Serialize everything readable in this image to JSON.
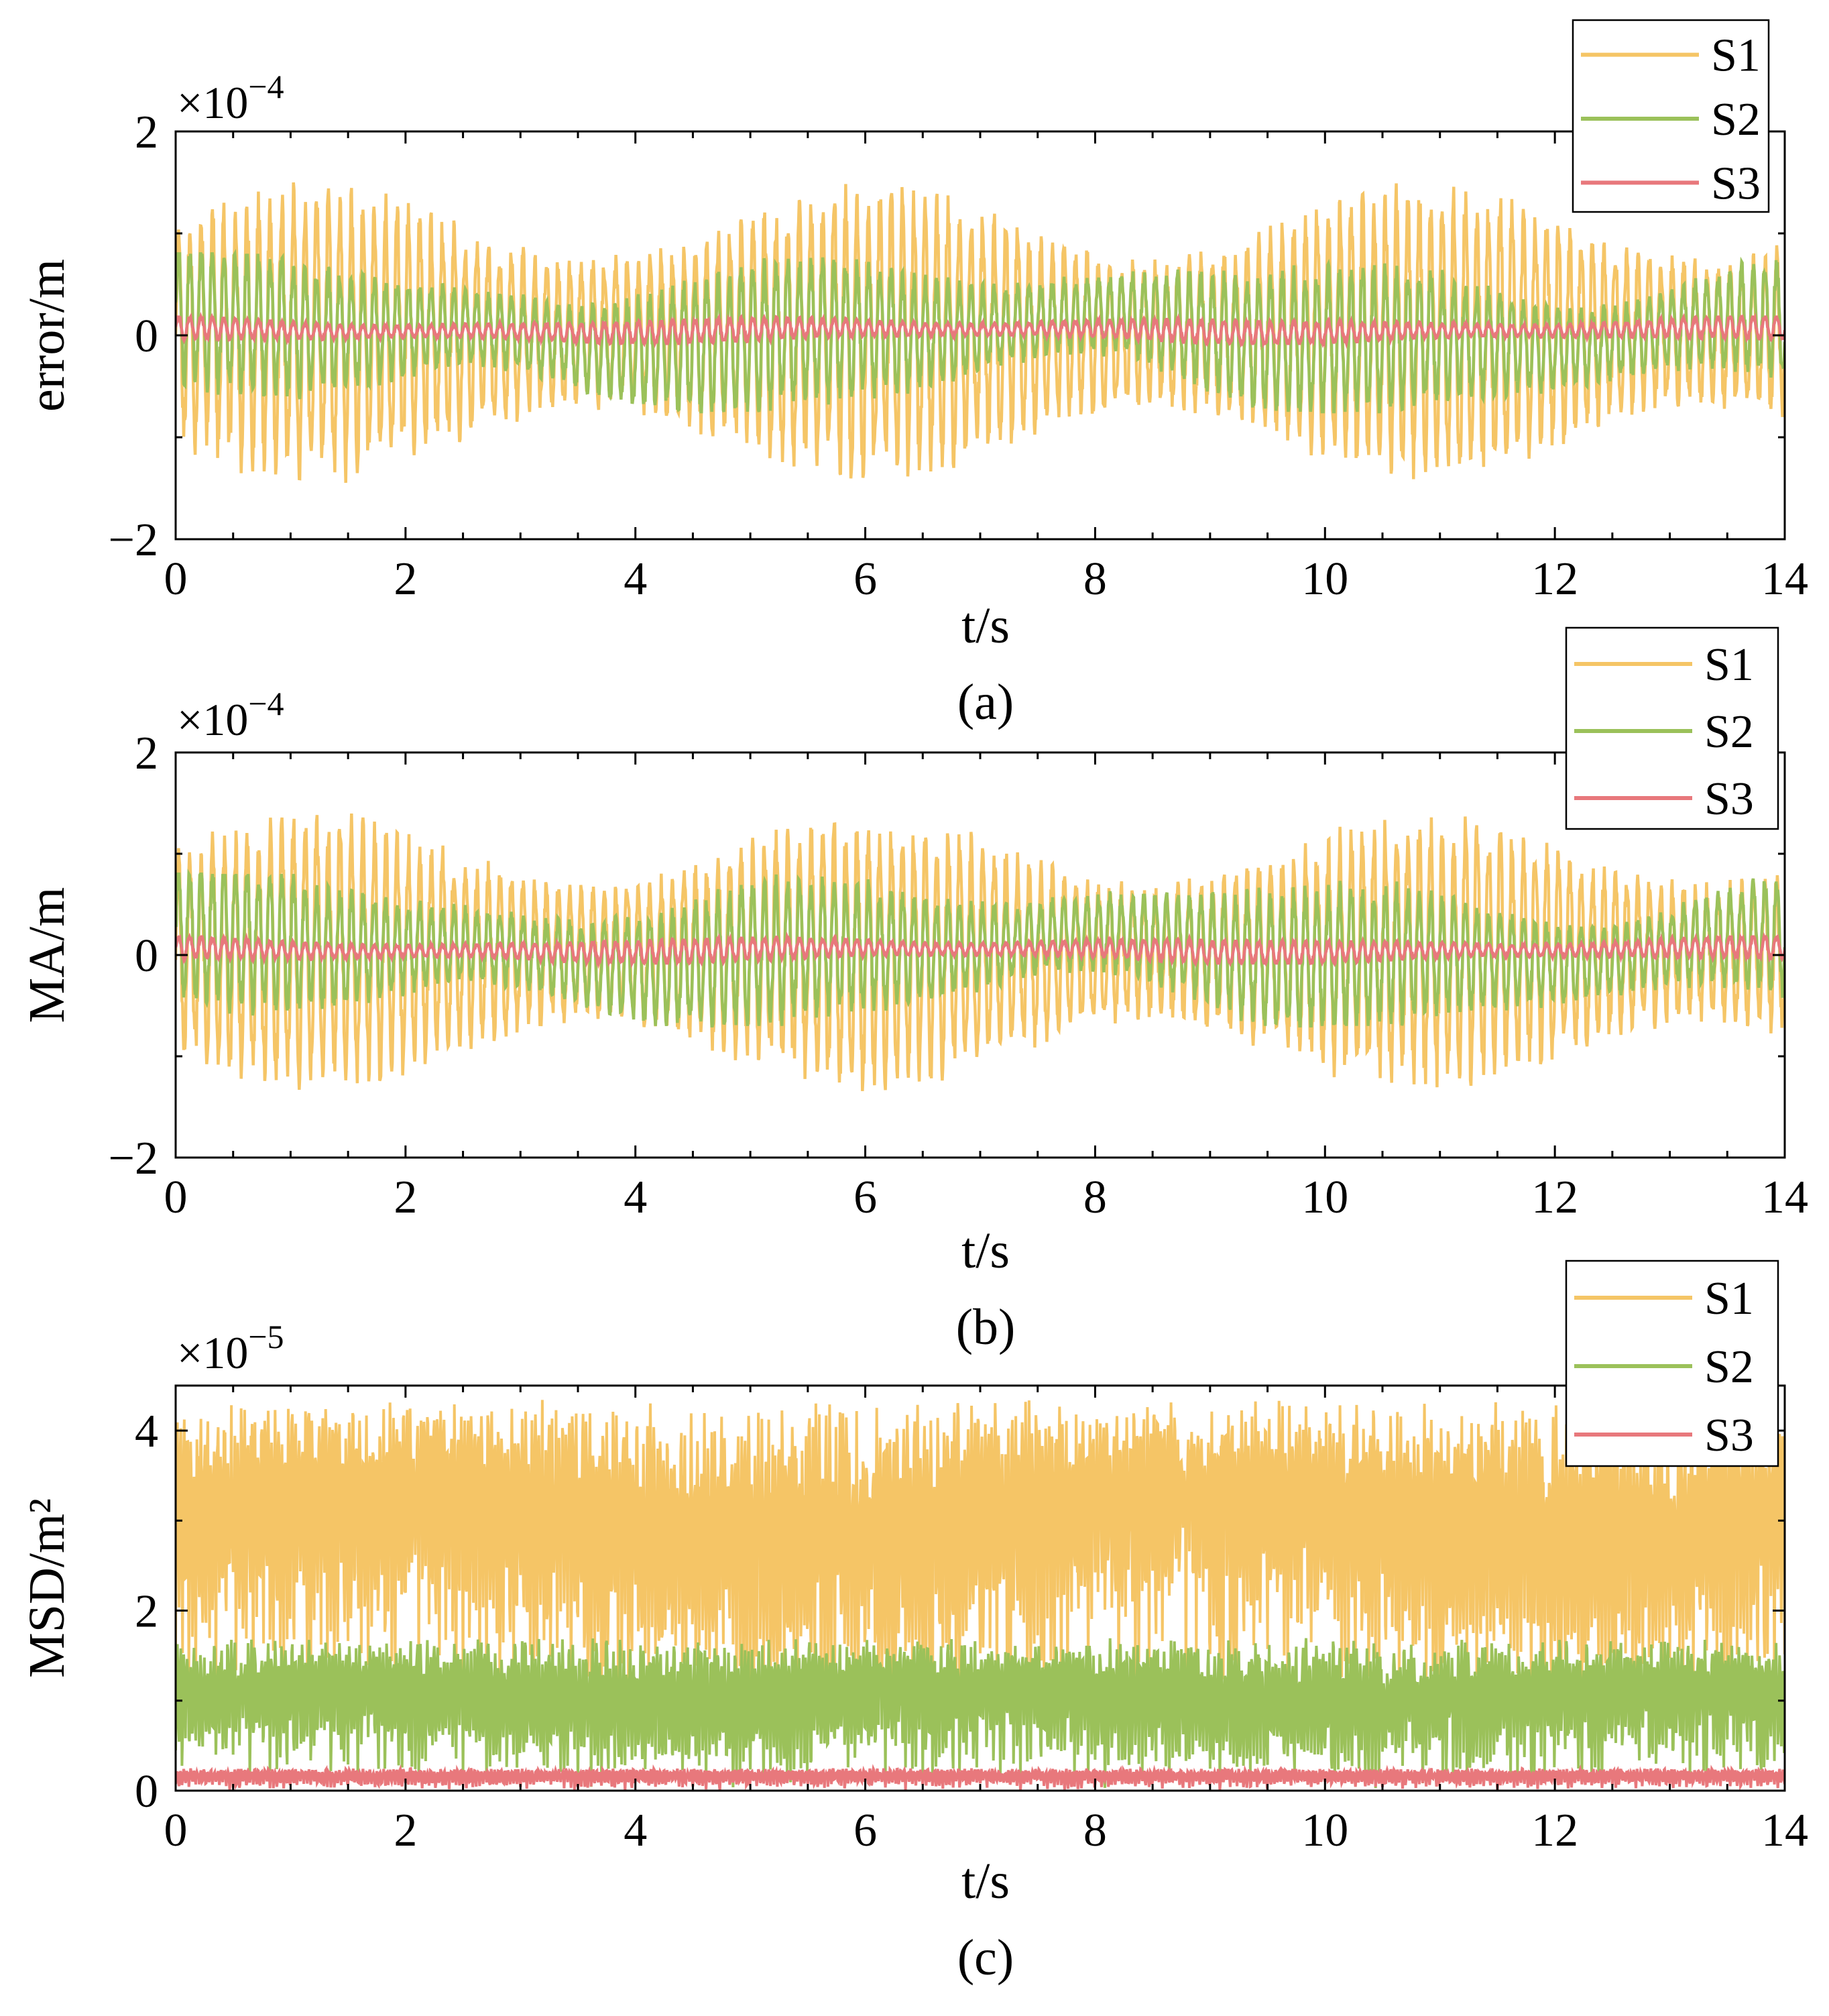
{
  "colors": {
    "S1": "#f5c566",
    "S2": "#9bc15a",
    "S3": "#e8787c"
  },
  "chart_data": [
    {
      "type": "line",
      "panel_label": "(a)",
      "ylabel": "error/m",
      "xlabel": "t/s",
      "exponent": "×10",
      "exponent_power": "−4",
      "xlim": [
        0,
        14
      ],
      "ylim": [
        -2,
        2
      ],
      "x_ticks": [
        0,
        2,
        4,
        6,
        8,
        10,
        12,
        14
      ],
      "x_tick_labels": [
        "0",
        "2",
        "4",
        "6",
        "8",
        "10",
        "12",
        "14"
      ],
      "y_ticks": [
        -2,
        0,
        2
      ],
      "y_tick_labels": [
        "−2",
        "0",
        "2"
      ],
      "legend": [
        "S1",
        "S2",
        "S3"
      ],
      "series": [
        {
          "name": "S1",
          "amplitude": 1.2,
          "offset": 0,
          "oscillation_period": 0.1,
          "range": [
            -1.45,
            1.5
          ]
        },
        {
          "name": "S2",
          "amplitude": 0.45,
          "offset": 0,
          "oscillation_period": 0.1,
          "range": [
            -0.75,
            0.8
          ]
        },
        {
          "name": "S3",
          "amplitude": 0.08,
          "offset": 0.05,
          "oscillation_period": 0.1,
          "range": [
            -0.08,
            0.18
          ]
        }
      ]
    },
    {
      "type": "line",
      "panel_label": "(b)",
      "ylabel": "MA/m",
      "xlabel": "t/s",
      "exponent": "×10",
      "exponent_power": "−4",
      "xlim": [
        0,
        14
      ],
      "ylim": [
        -2,
        2
      ],
      "x_ticks": [
        0,
        2,
        4,
        6,
        8,
        10,
        12,
        14
      ],
      "x_tick_labels": [
        "0",
        "2",
        "4",
        "6",
        "8",
        "10",
        "12",
        "14"
      ],
      "y_ticks": [
        -2,
        0,
        2
      ],
      "y_tick_labels": [
        "−2",
        "0",
        "2"
      ],
      "legend": [
        "S1",
        "S2",
        "S3"
      ],
      "series": [
        {
          "name": "S1",
          "amplitude": 1.15,
          "offset": 0,
          "oscillation_period": 0.1,
          "range": [
            -1.35,
            1.4
          ]
        },
        {
          "name": "S2",
          "amplitude": 0.45,
          "offset": 0,
          "oscillation_period": 0.1,
          "range": [
            -0.7,
            0.8
          ]
        },
        {
          "name": "S3",
          "amplitude": 0.08,
          "offset": 0.05,
          "oscillation_period": 0.1,
          "range": [
            -0.08,
            0.18
          ]
        }
      ]
    },
    {
      "type": "line",
      "panel_label": "(c)",
      "ylabel": "MSD/m²",
      "xlabel": "t/s",
      "exponent": "×10",
      "exponent_power": "−5",
      "xlim": [
        0,
        14
      ],
      "ylim": [
        0,
        4.5
      ],
      "x_ticks": [
        0,
        2,
        4,
        6,
        8,
        10,
        12,
        14
      ],
      "x_tick_labels": [
        "0",
        "2",
        "4",
        "6",
        "8",
        "10",
        "12",
        "14"
      ],
      "y_ticks": [
        0,
        2,
        4
      ],
      "y_tick_labels": [
        "0",
        "2",
        "4"
      ],
      "legend": [
        "S1",
        "S2",
        "S3"
      ],
      "series": [
        {
          "name": "S1",
          "amplitude": 3.6,
          "offset": 0,
          "oscillation_period": 0.1,
          "range": [
            0.8,
            4.35
          ]
        },
        {
          "name": "S2",
          "amplitude": 1.4,
          "offset": 0,
          "oscillation_period": 0.1,
          "range": [
            0,
            1.7
          ]
        },
        {
          "name": "S3",
          "amplitude": 0.22,
          "offset": 0,
          "oscillation_period": 0.1,
          "range": [
            0,
            0.25
          ]
        }
      ]
    }
  ]
}
